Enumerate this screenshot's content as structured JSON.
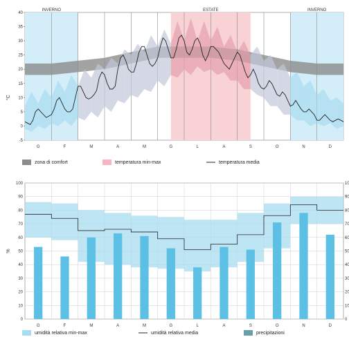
{
  "chart_data": [
    {
      "type": "area",
      "title": "",
      "ylabel": "°C",
      "xlabel": "",
      "ylim": [
        -5,
        40
      ],
      "yticks": [
        -5,
        0,
        5,
        10,
        15,
        20,
        25,
        30,
        35,
        40
      ],
      "grid": true,
      "categories": [
        "G",
        "F",
        "M",
        "A",
        "M",
        "G",
        "L",
        "A",
        "S",
        "O",
        "N",
        "D"
      ],
      "season_labels": [
        {
          "label": "INVERNO",
          "start_month": 0,
          "end_month": 2,
          "color": "#d3eef8"
        },
        {
          "label": "ESTATE",
          "start_month": 5.5,
          "end_month": 8.5,
          "color": "#f9d2d6"
        },
        {
          "label": "INVERNO",
          "start_month": 10,
          "end_month": 12,
          "color": "#d3eef8"
        }
      ],
      "series": [
        {
          "name": "zona di comfort",
          "color": "#8c8c8c",
          "x": [
            0,
            1,
            2,
            3,
            4,
            5,
            6,
            7,
            8,
            9,
            10,
            11,
            12
          ],
          "low": [
            18,
            18,
            19,
            20,
            22,
            24,
            24,
            24,
            23,
            21,
            19,
            18,
            18
          ],
          "high": [
            22,
            22,
            23,
            24,
            26,
            28,
            28,
            28,
            27,
            25,
            23,
            22,
            22
          ]
        },
        {
          "name": "temperatura min-max",
          "colors": {
            "winter": "#a8dcf0",
            "mid": "#c2c8d8",
            "summer": "#e6a0ae"
          },
          "x": [
            0,
            0.25,
            0.5,
            0.75,
            1,
            1.25,
            1.5,
            1.75,
            2,
            2.25,
            2.5,
            2.75,
            3,
            3.25,
            3.5,
            3.75,
            4,
            4.25,
            4.5,
            4.75,
            5,
            5.25,
            5.5,
            5.75,
            6,
            6.25,
            6.5,
            6.75,
            7,
            7.25,
            7.5,
            7.75,
            8,
            8.25,
            8.5,
            8.75,
            9,
            9.25,
            9.5,
            9.75,
            10,
            10.25,
            10.5,
            10.75,
            11,
            11.25,
            11.5,
            11.75,
            12
          ],
          "low": [
            -1,
            -2,
            0,
            -1,
            1,
            0,
            2,
            0,
            3,
            2,
            5,
            3,
            7,
            5,
            9,
            8,
            11,
            10,
            13,
            12,
            16,
            14,
            18,
            17,
            20,
            18,
            21,
            19,
            20,
            18,
            19,
            16,
            16,
            13,
            13,
            11,
            10,
            7,
            7,
            4,
            4,
            2,
            2,
            0,
            1,
            0,
            1,
            -1,
            0
          ],
          "high": [
            7,
            12,
            8,
            13,
            10,
            16,
            12,
            18,
            14,
            20,
            17,
            22,
            20,
            24,
            22,
            27,
            25,
            29,
            26,
            32,
            28,
            34,
            29,
            37,
            30,
            38,
            30,
            37,
            30,
            35,
            28,
            32,
            26,
            30,
            25,
            28,
            23,
            25,
            20,
            22,
            17,
            19,
            14,
            16,
            11,
            13,
            9,
            10,
            8
          ]
        },
        {
          "name": "temperatura media",
          "color": "#222222",
          "x": [
            0,
            0.1,
            0.2,
            0.3,
            0.4,
            0.5,
            0.6,
            0.7,
            0.8,
            0.9,
            1,
            1.1,
            1.2,
            1.3,
            1.4,
            1.5,
            1.6,
            1.7,
            1.8,
            1.9,
            2,
            2.1,
            2.2,
            2.3,
            2.4,
            2.5,
            2.6,
            2.7,
            2.8,
            2.9,
            3,
            3.1,
            3.2,
            3.3,
            3.4,
            3.5,
            3.6,
            3.7,
            3.8,
            3.9,
            4,
            4.1,
            4.2,
            4.3,
            4.4,
            4.5,
            4.6,
            4.7,
            4.8,
            4.9,
            5,
            5.1,
            5.2,
            5.3,
            5.4,
            5.5,
            5.6,
            5.7,
            5.8,
            5.9,
            6,
            6.1,
            6.2,
            6.3,
            6.4,
            6.5,
            6.6,
            6.7,
            6.8,
            6.9,
            7,
            7.1,
            7.2,
            7.3,
            7.4,
            7.5,
            7.6,
            7.7,
            7.8,
            7.9,
            8,
            8.1,
            8.2,
            8.3,
            8.4,
            8.5,
            8.6,
            8.7,
            8.8,
            8.9,
            9,
            9.1,
            9.2,
            9.3,
            9.4,
            9.5,
            9.6,
            9.7,
            9.8,
            9.9,
            10,
            10.1,
            10.2,
            10.3,
            10.4,
            10.5,
            10.6,
            10.7,
            10.8,
            10.9,
            11,
            11.1,
            11.2,
            11.3,
            11.4,
            11.5,
            11.6,
            11.7,
            11.8,
            11.9,
            12
          ],
          "y": [
            1.5,
            1,
            0.5,
            2,
            5,
            6,
            5,
            4,
            3,
            3.5,
            4,
            6,
            9,
            10,
            8,
            6,
            5,
            5,
            6,
            10,
            14,
            14,
            12,
            10,
            9.5,
            10,
            11,
            12.5,
            17,
            19,
            18,
            15,
            13,
            13,
            14,
            20,
            24,
            25,
            23,
            20,
            19,
            19,
            22,
            26,
            28,
            28,
            25,
            22,
            21,
            22,
            24,
            28,
            31,
            30,
            27,
            24,
            24,
            27,
            31,
            32,
            30,
            26,
            25,
            27,
            30,
            31,
            29,
            25,
            23,
            25,
            28,
            28,
            27,
            26,
            24,
            22,
            21,
            20,
            22,
            24,
            26,
            25,
            22,
            19,
            17,
            18,
            20,
            18,
            15,
            13.5,
            13,
            14,
            16,
            15,
            13,
            11,
            10.5,
            12,
            11,
            9,
            7,
            7.5,
            9,
            7.5,
            6,
            5,
            5,
            6,
            5,
            4,
            2,
            2,
            3,
            4,
            3,
            2,
            1.5,
            2,
            2.5,
            2,
            1.5
          ]
        }
      ],
      "legend": [
        {
          "label": "zona di comfort",
          "swatch": "#8c8c8c",
          "kind": "box"
        },
        {
          "label": "temperatura min-max",
          "swatch": "#f4b6c0",
          "kind": "box"
        },
        {
          "label": "temperatura media",
          "swatch": "#222222",
          "kind": "line"
        }
      ]
    },
    {
      "type": "bar",
      "title": "",
      "ylabel": "%",
      "xlabel": "",
      "ylim": [
        0,
        100
      ],
      "yticks": [
        0,
        10,
        20,
        30,
        40,
        50,
        60,
        70,
        80,
        90,
        100
      ],
      "y2lim": [
        0,
        100
      ],
      "y2ticks": [
        0,
        10,
        20,
        30,
        40,
        50,
        60,
        70,
        80,
        90,
        100
      ],
      "grid": true,
      "categories": [
        "G",
        "F",
        "M",
        "A",
        "M",
        "G",
        "L",
        "A",
        "S",
        "O",
        "N",
        "D"
      ],
      "series": [
        {
          "name": "umidità relativa min-max",
          "color": "#a8dcf0",
          "low": [
            60,
            58,
            42,
            40,
            38,
            37,
            35,
            38,
            42,
            52,
            70,
            70
          ],
          "high": [
            86,
            85,
            80,
            78,
            76,
            75,
            73,
            73,
            78,
            85,
            90,
            90
          ]
        },
        {
          "name": "umidità relativa media",
          "color": "#222222",
          "values": [
            77,
            74,
            65,
            66,
            64,
            59,
            51,
            55,
            62,
            76,
            84,
            80
          ]
        },
        {
          "name": "precipitazioni",
          "color": "#5cc0e4",
          "values": [
            53,
            46,
            60,
            63,
            61,
            52,
            38,
            53,
            51,
            71,
            78,
            62
          ]
        }
      ],
      "legend": [
        {
          "label": "umidità relativa min-max",
          "swatch": "#a8dcf0",
          "kind": "box"
        },
        {
          "label": "umidità relativa media",
          "swatch": "#222222",
          "kind": "line"
        },
        {
          "label": "precipitazioni",
          "swatch": "#6a9fa8",
          "kind": "box"
        }
      ]
    }
  ]
}
